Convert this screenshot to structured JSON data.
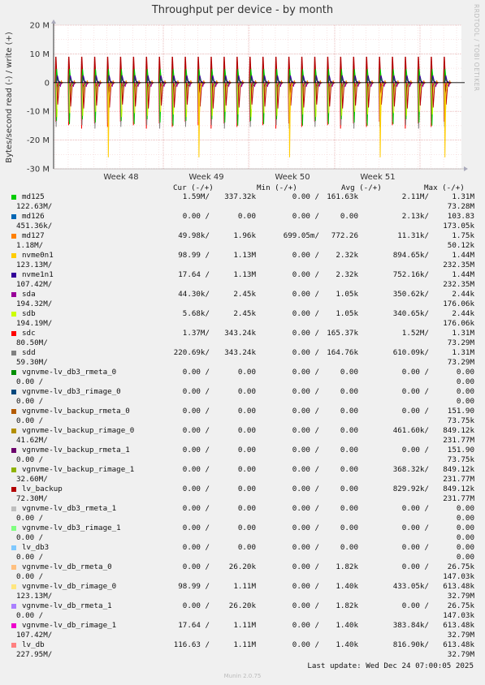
{
  "title": "Throughput per device - by month",
  "side_label": "RRDTOOL / TOBI OETIKER",
  "footer": {
    "last_update": "Last update: Wed Dec 24 07:00:05 2025",
    "munin": "Munin 2.0.75"
  },
  "legend_headers": {
    "cur": "Cur (-/+)",
    "min": "Min (-/+)",
    "avg": "Avg (-/+)",
    "max": "Max (-/+)"
  },
  "chart_data": {
    "type": "line",
    "title": "Throughput per device - by month",
    "ylabel": "Bytes/second read (-) / write (+)",
    "ylim": [
      -30000000,
      20000000
    ],
    "yticks": [
      20000000,
      10000000,
      0,
      -10000000,
      -20000000,
      -30000000
    ],
    "ytick_labels": [
      "20 M",
      "10 M",
      "0",
      "-10 M",
      "-20 M",
      "-30 M"
    ],
    "xtick_labels": [
      "Week 48",
      "Week 49",
      "Week 50",
      "Week 51"
    ],
    "grid": true,
    "pattern": {
      "period_hours": 24,
      "spike_count": 31,
      "write_peaks": {
        "lv_backup": 10000000,
        "md125": 5000000,
        "nvme1n1": 2500000
      },
      "read_dips": {
        "sdc": -16000000,
        "sdd": -16000000,
        "md125": -15000000,
        "sdb": -12000000,
        "vgnvme-lv_db_rimage_0": -10000000,
        "lv_backup": -9000000
      },
      "weekly_read_dips": {
        "nvme0n1": -26000000
      }
    }
  },
  "series": [
    {
      "name": "md125",
      "color": "#00cc00",
      "cur": "1.59M/",
      "cur2": "337.32k",
      "min": "0.00 /",
      "min2": "161.63k",
      "avg": "2.11M/",
      "avg2": "1.31M",
      "max": "122.63M/",
      "max2": "73.28M"
    },
    {
      "name": "md126",
      "color": "#0066b3",
      "cur": "0.00 /",
      "cur2": "0.00",
      "min": "0.00 /",
      "min2": "0.00",
      "avg": "2.13k/",
      "avg2": "103.83",
      "max": "451.36k/",
      "max2": "173.05k"
    },
    {
      "name": "md127",
      "color": "#ff8000",
      "cur": "49.98k/",
      "cur2": "1.96k",
      "min": "699.05m/",
      "min2": "772.26",
      "avg": "11.31k/",
      "avg2": "1.75k",
      "max": "1.18M/",
      "max2": "50.12k"
    },
    {
      "name": "nvme0n1",
      "color": "#ffcc00",
      "cur": "98.99 /",
      "cur2": "1.13M",
      "min": "0.00 /",
      "min2": "2.32k",
      "avg": "894.65k/",
      "avg2": "1.44M",
      "max": "123.13M/",
      "max2": "232.35M"
    },
    {
      "name": "nvme1n1",
      "color": "#330099",
      "cur": "17.64 /",
      "cur2": "1.13M",
      "min": "0.00 /",
      "min2": "2.32k",
      "avg": "752.16k/",
      "avg2": "1.44M",
      "max": "107.42M/",
      "max2": "232.35M"
    },
    {
      "name": "sda",
      "color": "#990099",
      "cur": "44.30k/",
      "cur2": "2.45k",
      "min": "0.00 /",
      "min2": "1.05k",
      "avg": "350.62k/",
      "avg2": "2.44k",
      "max": "194.32M/",
      "max2": "176.06k"
    },
    {
      "name": "sdb",
      "color": "#ccff00",
      "cur": "5.68k/",
      "cur2": "2.45k",
      "min": "0.00 /",
      "min2": "1.05k",
      "avg": "340.65k/",
      "avg2": "2.44k",
      "max": "194.19M/",
      "max2": "176.06k"
    },
    {
      "name": "sdc",
      "color": "#ff0000",
      "cur": "1.37M/",
      "cur2": "343.24k",
      "min": "0.00 /",
      "min2": "165.37k",
      "avg": "1.52M/",
      "avg2": "1.31M",
      "max": "80.50M/",
      "max2": "73.29M"
    },
    {
      "name": "sdd",
      "color": "#808080",
      "cur": "220.69k/",
      "cur2": "343.24k",
      "min": "0.00 /",
      "min2": "164.76k",
      "avg": "610.09k/",
      "avg2": "1.31M",
      "max": "59.30M/",
      "max2": "73.29M"
    },
    {
      "name": "vgnvme-lv_db3_rmeta_0",
      "color": "#008f00",
      "cur": "0.00 /",
      "cur2": "0.00",
      "min": "0.00 /",
      "min2": "0.00",
      "avg": "0.00 /",
      "avg2": "0.00",
      "max": "0.00 /",
      "max2": "0.00"
    },
    {
      "name": "vgnvme-lv_db3_rimage_0",
      "color": "#00487d",
      "cur": "0.00 /",
      "cur2": "0.00",
      "min": "0.00 /",
      "min2": "0.00",
      "avg": "0.00 /",
      "avg2": "0.00",
      "max": "0.00 /",
      "max2": "0.00"
    },
    {
      "name": "vgnvme-lv_backup_rmeta_0",
      "color": "#b35a00",
      "cur": "0.00 /",
      "cur2": "0.00",
      "min": "0.00 /",
      "min2": "0.00",
      "avg": "0.00 /",
      "avg2": "151.90",
      "max": "0.00 /",
      "max2": "73.75k"
    },
    {
      "name": "vgnvme-lv_backup_rimage_0",
      "color": "#b38f00",
      "cur": "0.00 /",
      "cur2": "0.00",
      "min": "0.00 /",
      "min2": "0.00",
      "avg": "461.60k/",
      "avg2": "849.12k",
      "max": "41.62M/",
      "max2": "231.77M"
    },
    {
      "name": "vgnvme-lv_backup_rmeta_1",
      "color": "#6b006b",
      "cur": "0.00 /",
      "cur2": "0.00",
      "min": "0.00 /",
      "min2": "0.00",
      "avg": "0.00 /",
      "avg2": "151.90",
      "max": "0.00 /",
      "max2": "73.75k"
    },
    {
      "name": "vgnvme-lv_backup_rimage_1",
      "color": "#8fb300",
      "cur": "0.00 /",
      "cur2": "0.00",
      "min": "0.00 /",
      "min2": "0.00",
      "avg": "368.32k/",
      "avg2": "849.12k",
      "max": "32.60M/",
      "max2": "231.77M"
    },
    {
      "name": "lv_backup",
      "color": "#b30000",
      "cur": "0.00 /",
      "cur2": "0.00",
      "min": "0.00 /",
      "min2": "0.00",
      "avg": "829.92k/",
      "avg2": "849.12k",
      "max": "72.30M/",
      "max2": "231.77M"
    },
    {
      "name": "vgnvme-lv_db3_rmeta_1",
      "color": "#bebebe",
      "cur": "0.00 /",
      "cur2": "0.00",
      "min": "0.00 /",
      "min2": "0.00",
      "avg": "0.00 /",
      "avg2": "0.00",
      "max": "0.00 /",
      "max2": "0.00"
    },
    {
      "name": "vgnvme-lv_db3_rimage_1",
      "color": "#80ff80",
      "cur": "0.00 /",
      "cur2": "0.00",
      "min": "0.00 /",
      "min2": "0.00",
      "avg": "0.00 /",
      "avg2": "0.00",
      "max": "0.00 /",
      "max2": "0.00"
    },
    {
      "name": "lv_db3",
      "color": "#80c9ff",
      "cur": "0.00 /",
      "cur2": "0.00",
      "min": "0.00 /",
      "min2": "0.00",
      "avg": "0.00 /",
      "avg2": "0.00",
      "max": "0.00 /",
      "max2": "0.00"
    },
    {
      "name": "vgnvme-lv_db_rmeta_0",
      "color": "#ffc080",
      "cur": "0.00 /",
      "cur2": "26.20k",
      "min": "0.00 /",
      "min2": "1.82k",
      "avg": "0.00 /",
      "avg2": "26.75k",
      "max": "0.00 /",
      "max2": "147.03k"
    },
    {
      "name": "vgnvme-lv_db_rimage_0",
      "color": "#ffe680",
      "cur": "98.99 /",
      "cur2": "1.11M",
      "min": "0.00 /",
      "min2": "1.40k",
      "avg": "433.05k/",
      "avg2": "613.48k",
      "max": "123.13M/",
      "max2": "32.79M"
    },
    {
      "name": "vgnvme-lv_db_rmeta_1",
      "color": "#aa80ff",
      "cur": "0.00 /",
      "cur2": "26.20k",
      "min": "0.00 /",
      "min2": "1.82k",
      "avg": "0.00 /",
      "avg2": "26.75k",
      "max": "0.00 /",
      "max2": "147.03k"
    },
    {
      "name": "vgnvme-lv_db_rimage_1",
      "color": "#ee00cc",
      "cur": "17.64 /",
      "cur2": "1.11M",
      "min": "0.00 /",
      "min2": "1.40k",
      "avg": "383.84k/",
      "avg2": "613.48k",
      "max": "107.42M/",
      "max2": "32.79M"
    },
    {
      "name": "lv_db",
      "color": "#ff8080",
      "cur": "116.63 /",
      "cur2": "1.11M",
      "min": "0.00 /",
      "min2": "1.40k",
      "avg": "816.90k/",
      "avg2": "613.48k",
      "max": "227.95M/",
      "max2": "32.79M"
    }
  ]
}
